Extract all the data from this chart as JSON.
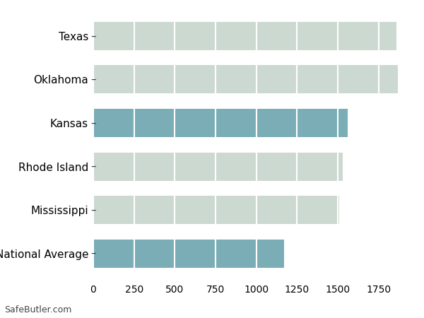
{
  "categories": [
    "Texas",
    "Oklahoma",
    "Kansas",
    "Rhode Island",
    "Mississippi",
    "National Average"
  ],
  "values": [
    1858,
    1868,
    1560,
    1530,
    1510,
    1172
  ],
  "bar_colors": [
    "#ccd9d0",
    "#ccd9d0",
    "#7aadb5",
    "#ccd9d0",
    "#ccd9d0",
    "#7aadb5"
  ],
  "xlim": [
    0,
    1950
  ],
  "xticks": [
    0,
    250,
    500,
    750,
    1000,
    1250,
    1500,
    1750
  ],
  "background_color": "#ffffff",
  "grid_color": "#ffffff",
  "bar_height": 0.65,
  "footnote": "SafeButler.com",
  "fontsize_labels": 11,
  "fontsize_ticks": 10
}
